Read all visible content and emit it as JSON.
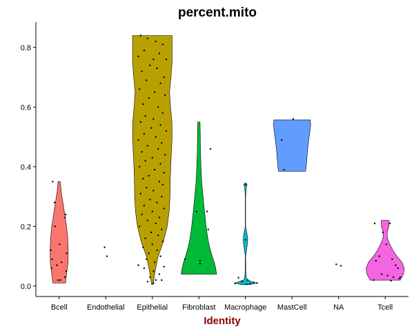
{
  "chart_data": {
    "type": "violin",
    "title": "percent.mito",
    "xlabel": "Identity",
    "xlabel_color": "#8B0000",
    "ylabel": "",
    "ylim": [
      -0.035,
      0.885
    ],
    "yticks": [
      0.0,
      0.2,
      0.4,
      0.6,
      0.8
    ],
    "ytick_labels": [
      "0.0",
      "0.2",
      "0.4",
      "0.6",
      "0.8"
    ],
    "grid": false,
    "legend": "none",
    "categories": [
      "Bcell",
      "Endothelial",
      "Epithelial",
      "Fibroblast",
      "Macrophage",
      "MastCell",
      "NA",
      "Tcell"
    ],
    "series": [
      {
        "category": "Bcell",
        "color": "#F8766D",
        "violin": [
          [
            0.01,
            0.27
          ],
          [
            0.04,
            0.32
          ],
          [
            0.08,
            0.38
          ],
          [
            0.12,
            0.39
          ],
          [
            0.16,
            0.37
          ],
          [
            0.2,
            0.32
          ],
          [
            0.24,
            0.24
          ],
          [
            0.28,
            0.16
          ],
          [
            0.32,
            0.08
          ],
          [
            0.35,
            0.05
          ]
        ],
        "points": [
          [
            -0.28,
            0.35
          ],
          [
            -0.2,
            0.28
          ],
          [
            0.28,
            0.24
          ],
          [
            0.25,
            0.23
          ],
          [
            -0.18,
            0.2
          ],
          [
            0.02,
            0.14
          ],
          [
            -0.35,
            0.12
          ],
          [
            0.32,
            0.11
          ],
          [
            -0.3,
            0.09
          ],
          [
            0.1,
            0.08
          ],
          [
            -0.1,
            0.07
          ],
          [
            0.3,
            0.05
          ],
          [
            0.25,
            0.03
          ],
          [
            0.05,
            0.02
          ],
          [
            -0.05,
            0.02
          ],
          [
            -0.33,
            0.06
          ]
        ]
      },
      {
        "category": "Endothelial",
        "color": "#CD9600",
        "violin": [],
        "points": [
          [
            -0.05,
            0.13
          ],
          [
            0.05,
            0.1
          ]
        ]
      },
      {
        "category": "Epithelial",
        "color": "#B8A000",
        "violin": [
          [
            0.005,
            0.03
          ],
          [
            0.05,
            0.12
          ],
          [
            0.1,
            0.25
          ],
          [
            0.15,
            0.48
          ],
          [
            0.2,
            0.64
          ],
          [
            0.25,
            0.72
          ],
          [
            0.3,
            0.76
          ],
          [
            0.35,
            0.77
          ],
          [
            0.4,
            0.79
          ],
          [
            0.45,
            0.82
          ],
          [
            0.5,
            0.85
          ],
          [
            0.55,
            0.84
          ],
          [
            0.6,
            0.78
          ],
          [
            0.65,
            0.74
          ],
          [
            0.7,
            0.8
          ],
          [
            0.75,
            0.85
          ],
          [
            0.8,
            0.85
          ],
          [
            0.84,
            0.85
          ]
        ],
        "points": [
          [
            -0.5,
            0.84
          ],
          [
            -0.2,
            0.83
          ],
          [
            0.15,
            0.82
          ],
          [
            0.45,
            0.81
          ],
          [
            -0.35,
            0.79
          ],
          [
            0.3,
            0.78
          ],
          [
            -0.6,
            0.77
          ],
          [
            0.05,
            0.76
          ],
          [
            0.6,
            0.76
          ],
          [
            -0.1,
            0.74
          ],
          [
            0.2,
            0.73
          ],
          [
            -0.45,
            0.72
          ],
          [
            0.5,
            0.7
          ],
          [
            -0.25,
            0.69
          ],
          [
            0.35,
            0.68
          ],
          [
            -0.55,
            0.66
          ],
          [
            0.1,
            0.65
          ],
          [
            0.55,
            0.64
          ],
          [
            -0.15,
            0.63
          ],
          [
            -0.4,
            0.61
          ],
          [
            0.25,
            0.6
          ],
          [
            0.45,
            0.58
          ],
          [
            -0.3,
            0.57
          ],
          [
            0.05,
            0.56
          ],
          [
            -0.5,
            0.55
          ],
          [
            0.35,
            0.54
          ],
          [
            -0.05,
            0.53
          ],
          [
            0.6,
            0.52
          ],
          [
            -0.35,
            0.51
          ],
          [
            0.15,
            0.5
          ],
          [
            -0.6,
            0.49
          ],
          [
            0.4,
            0.48
          ],
          [
            -0.2,
            0.47
          ],
          [
            0.25,
            0.46
          ],
          [
            -0.45,
            0.45
          ],
          [
            0.55,
            0.44
          ],
          [
            0.0,
            0.43
          ],
          [
            -0.3,
            0.42
          ],
          [
            0.35,
            0.41
          ],
          [
            -0.55,
            0.4
          ],
          [
            0.1,
            0.39
          ],
          [
            0.5,
            0.38
          ],
          [
            -0.15,
            0.37
          ],
          [
            -0.4,
            0.36
          ],
          [
            0.3,
            0.35
          ],
          [
            0.45,
            0.34
          ],
          [
            -0.25,
            0.33
          ],
          [
            0.05,
            0.32
          ],
          [
            -0.5,
            0.31
          ],
          [
            0.4,
            0.3
          ],
          [
            -0.1,
            0.29
          ],
          [
            0.2,
            0.28
          ],
          [
            -0.35,
            0.27
          ],
          [
            0.5,
            0.26
          ],
          [
            0.0,
            0.25
          ],
          [
            -0.45,
            0.24
          ],
          [
            0.3,
            0.23
          ],
          [
            -0.2,
            0.22
          ],
          [
            0.15,
            0.21
          ],
          [
            -0.55,
            0.2
          ],
          [
            0.4,
            0.19
          ],
          [
            -0.05,
            0.18
          ],
          [
            0.25,
            0.17
          ],
          [
            -0.3,
            0.16
          ],
          [
            0.45,
            0.15
          ],
          [
            0.0,
            0.14
          ],
          [
            -0.4,
            0.13
          ],
          [
            0.2,
            0.12
          ],
          [
            -0.15,
            0.11
          ],
          [
            0.35,
            0.1
          ],
          [
            -0.25,
            0.09
          ],
          [
            0.1,
            0.08
          ],
          [
            -0.6,
            0.07
          ],
          [
            0.5,
            0.065
          ],
          [
            -0.35,
            0.06
          ],
          [
            0.05,
            0.05
          ],
          [
            0.3,
            0.04
          ],
          [
            -0.1,
            0.03
          ],
          [
            0.15,
            0.02
          ],
          [
            -0.2,
            0.015
          ],
          [
            0.05,
            0.01
          ],
          [
            0.4,
            0.02
          ]
        ]
      },
      {
        "category": "Fibroblast",
        "color": "#00BA38",
        "violin": [
          [
            0.04,
            0.76
          ],
          [
            0.06,
            0.72
          ],
          [
            0.08,
            0.66
          ],
          [
            0.1,
            0.57
          ],
          [
            0.13,
            0.46
          ],
          [
            0.16,
            0.38
          ],
          [
            0.2,
            0.31
          ],
          [
            0.25,
            0.24
          ],
          [
            0.3,
            0.18
          ],
          [
            0.35,
            0.12
          ],
          [
            0.4,
            0.09
          ],
          [
            0.45,
            0.07
          ],
          [
            0.5,
            0.06
          ],
          [
            0.55,
            0.05
          ]
        ],
        "points": [
          [
            0.5,
            0.46
          ],
          [
            -0.1,
            0.25
          ],
          [
            0.35,
            0.25
          ],
          [
            0.4,
            0.19
          ],
          [
            -0.6,
            0.09
          ],
          [
            0.05,
            0.085
          ],
          [
            0.05,
            0.075
          ]
        ]
      },
      {
        "category": "Macrophage",
        "color": "#00BFC4",
        "violin": [
          [
            0.005,
            0.18
          ],
          [
            0.01,
            0.46
          ],
          [
            0.015,
            0.28
          ],
          [
            0.02,
            0.08
          ],
          [
            0.03,
            0.03
          ],
          [
            0.05,
            0.012
          ],
          [
            0.1,
            0.007
          ],
          [
            0.14,
            0.08
          ],
          [
            0.155,
            0.1
          ],
          [
            0.17,
            0.08
          ],
          [
            0.2,
            0.007
          ],
          [
            0.3,
            0.007
          ],
          [
            0.33,
            0.035
          ],
          [
            0.34,
            0.07
          ],
          [
            0.345,
            0.035
          ]
        ],
        "points": [
          [
            0.0,
            0.34
          ],
          [
            0.0,
            0.155
          ],
          [
            -0.3,
            0.028
          ],
          [
            0.1,
            0.02
          ],
          [
            -0.15,
            0.015
          ],
          [
            0.35,
            0.012
          ],
          [
            0.5,
            0.01
          ],
          [
            -0.45,
            0.009
          ],
          [
            0.2,
            0.008
          ],
          [
            0.05,
            0.006
          ]
        ]
      },
      {
        "category": "MastCell",
        "color": "#619CFF",
        "violin": [
          [
            0.385,
            0.58
          ],
          [
            0.395,
            0.6
          ],
          [
            0.42,
            0.63
          ],
          [
            0.45,
            0.66
          ],
          [
            0.48,
            0.7
          ],
          [
            0.51,
            0.75
          ],
          [
            0.54,
            0.8
          ],
          [
            0.557,
            0.78
          ]
        ],
        "points": [
          [
            0.05,
            0.56
          ],
          [
            -0.45,
            0.49
          ],
          [
            -0.35,
            0.39
          ]
        ]
      },
      {
        "category": "NA",
        "color": "#F564E3",
        "violin": [],
        "points": [
          [
            -0.1,
            0.073
          ],
          [
            0.1,
            0.068
          ]
        ]
      },
      {
        "category": "Tcell",
        "color": "#F564E3",
        "violin": [
          [
            0.02,
            0.65
          ],
          [
            0.04,
            0.78
          ],
          [
            0.06,
            0.82
          ],
          [
            0.08,
            0.72
          ],
          [
            0.1,
            0.5
          ],
          [
            0.12,
            0.33
          ],
          [
            0.14,
            0.2
          ],
          [
            0.16,
            0.1
          ],
          [
            0.18,
            0.08
          ],
          [
            0.2,
            0.16
          ],
          [
            0.22,
            0.17
          ]
        ],
        "points": [
          [
            -0.45,
            0.21
          ],
          [
            0.2,
            0.21
          ],
          [
            -0.1,
            0.18
          ],
          [
            0.05,
            0.14
          ],
          [
            -0.25,
            0.1
          ],
          [
            0.3,
            0.09
          ],
          [
            -0.4,
            0.085
          ],
          [
            0.45,
            0.07
          ],
          [
            0.55,
            0.06
          ],
          [
            -0.15,
            0.04
          ],
          [
            0.1,
            0.035
          ],
          [
            0.35,
            0.03
          ],
          [
            0.6,
            0.025
          ],
          [
            -0.5,
            0.02
          ],
          [
            0.25,
            0.018
          ],
          [
            0.65,
            0.03
          ]
        ]
      }
    ]
  }
}
